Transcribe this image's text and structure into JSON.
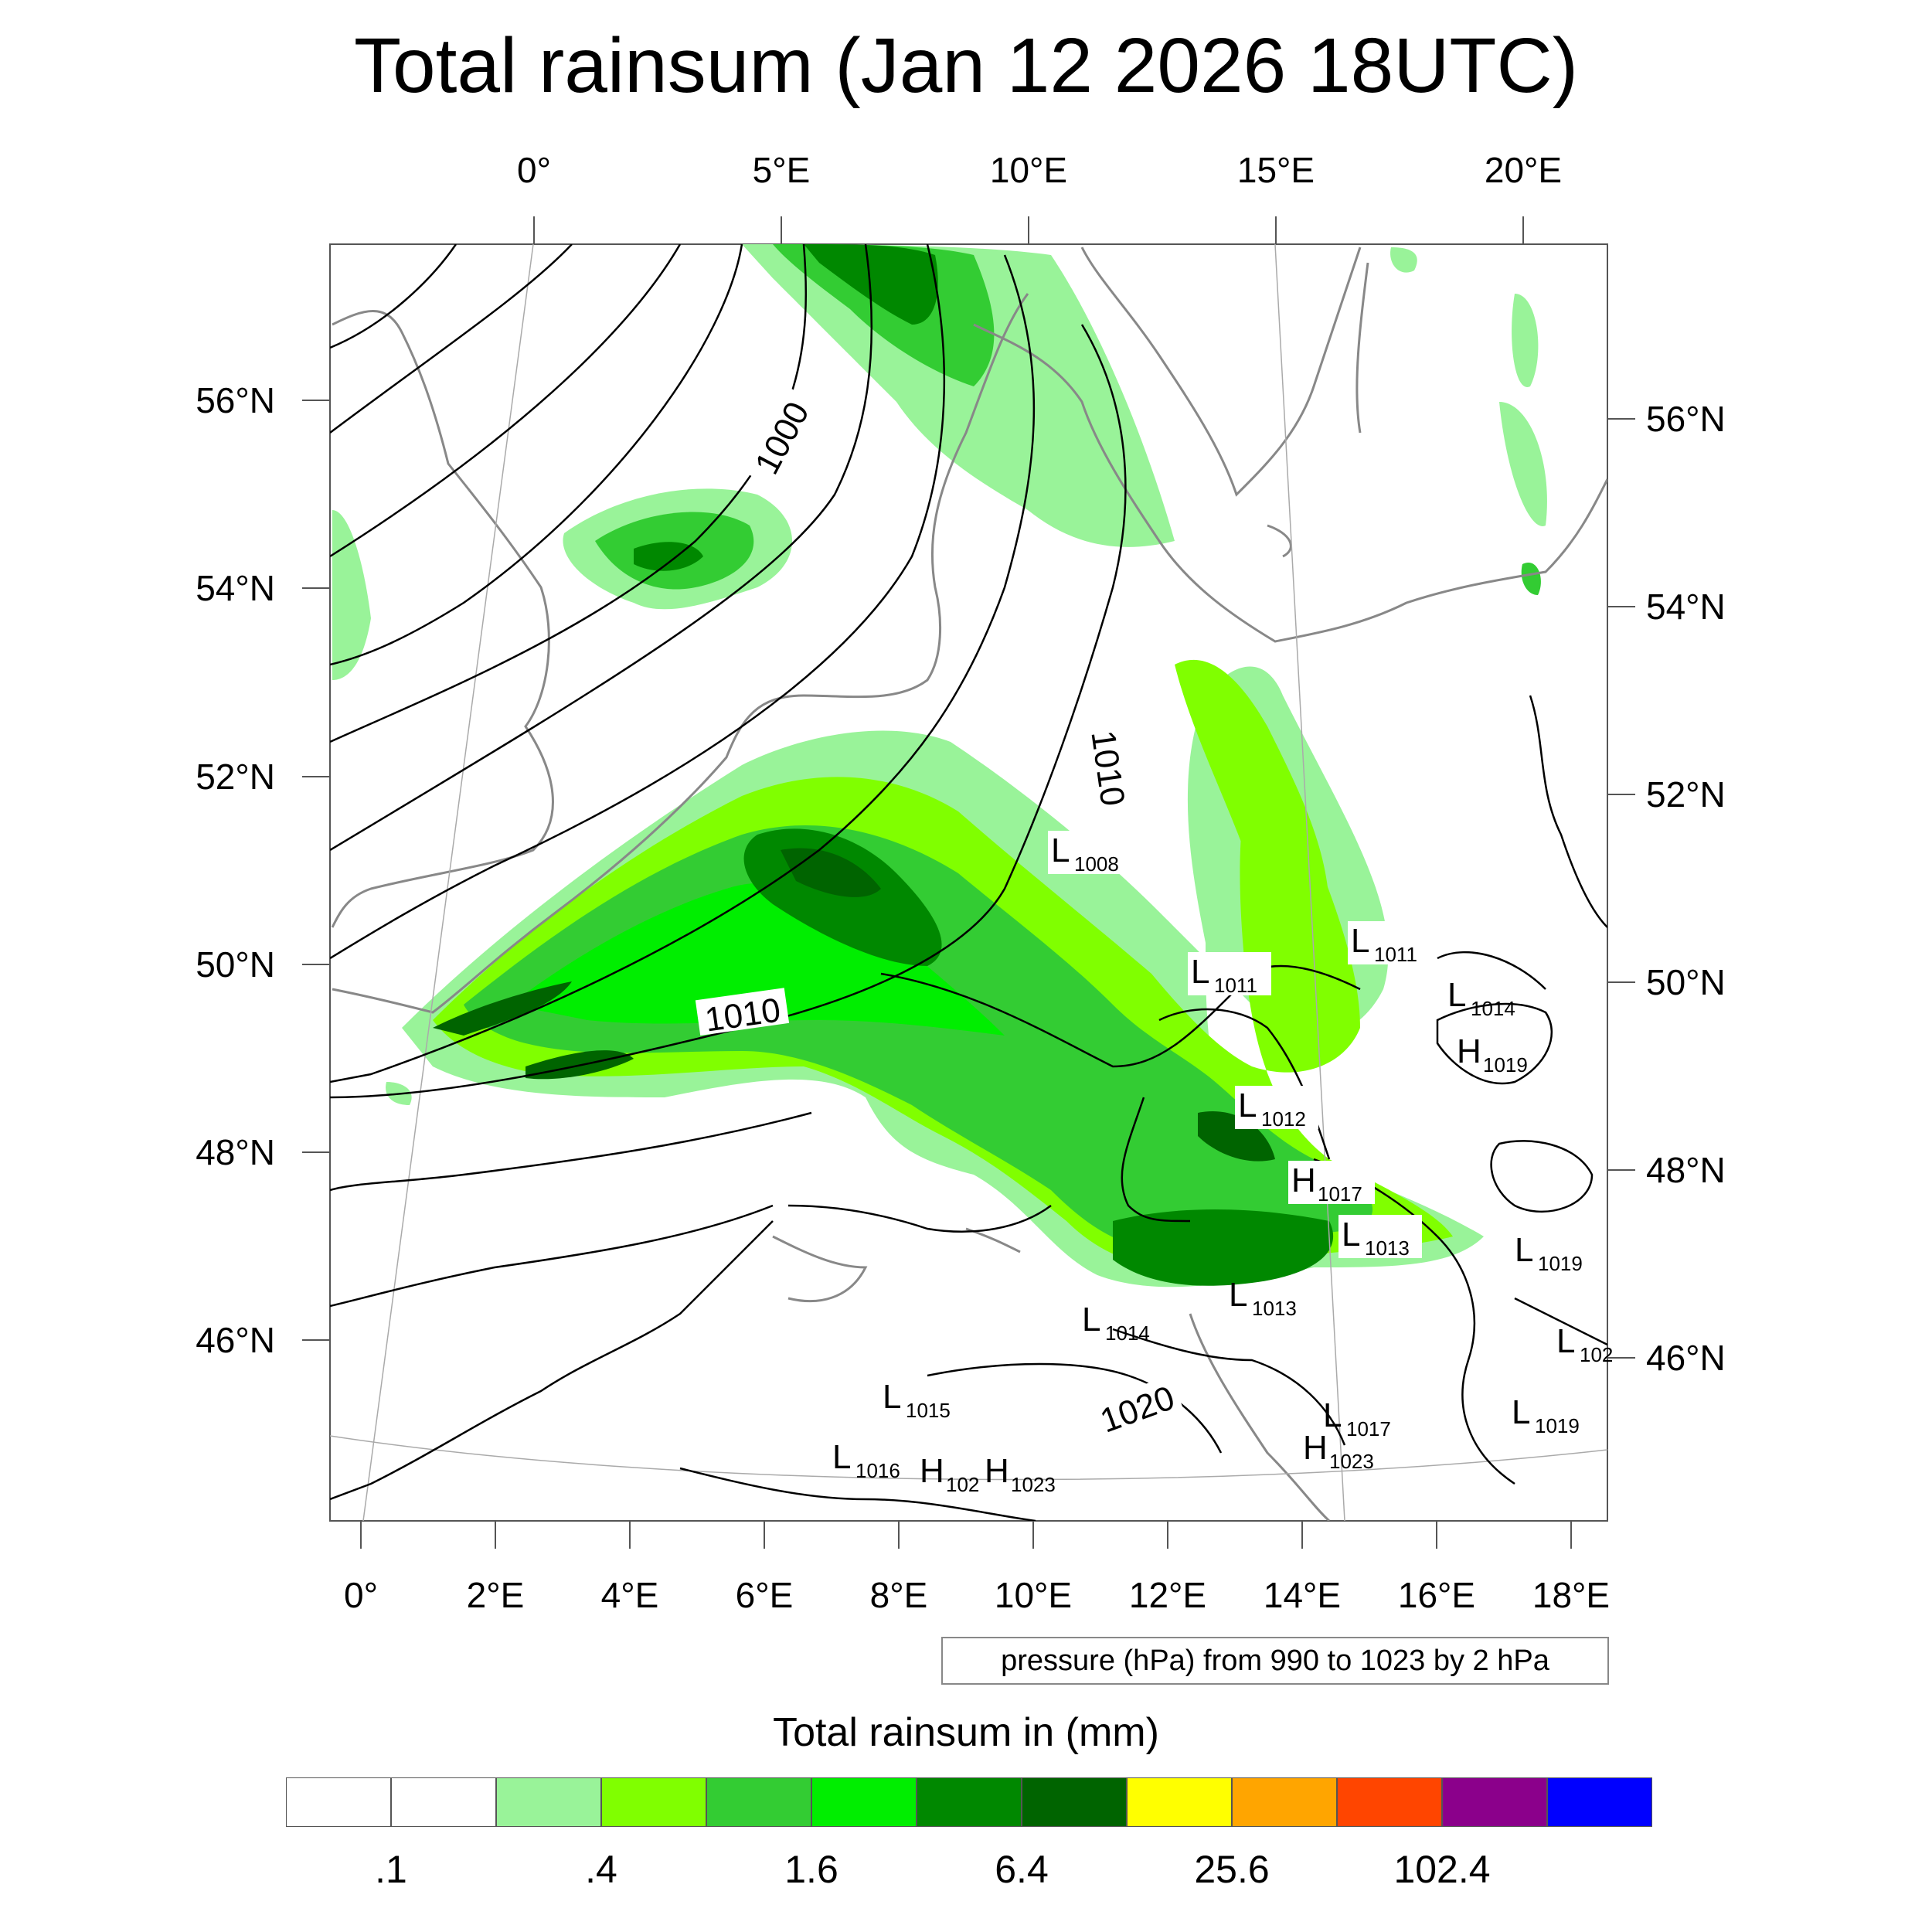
{
  "title": "Total rainsum (Jan 12 2026 18UTC)",
  "top_axis_labels": [
    "0°",
    "5°E",
    "10°E",
    "15°E",
    "20°E"
  ],
  "bottom_axis_labels": [
    "0°",
    "2°E",
    "4°E",
    "6°E",
    "8°E",
    "10°E",
    "12°E",
    "14°E",
    "16°E",
    "18°E"
  ],
  "left_axis_labels": [
    "56°N",
    "54°N",
    "52°N",
    "50°N",
    "48°N",
    "46°N"
  ],
  "right_axis_labels": [
    "56°N",
    "54°N",
    "52°N",
    "50°N",
    "48°N",
    "46°N"
  ],
  "contour_info": "pressure (hPa) from 990 to 1023 by 2 hPa",
  "isobar_labels": [
    "1000",
    "1010",
    "1010",
    "1020"
  ],
  "pressure_centers": [
    {
      "type": "L",
      "value": "1008"
    },
    {
      "type": "L",
      "value": "1011"
    },
    {
      "type": "L",
      "value": "1011"
    },
    {
      "type": "L",
      "value": "1014"
    },
    {
      "type": "H",
      "value": "1019"
    },
    {
      "type": "L",
      "value": "1012"
    },
    {
      "type": "H",
      "value": "1017"
    },
    {
      "type": "L",
      "value": "1013"
    },
    {
      "type": "L",
      "value": "1013"
    },
    {
      "type": "L",
      "value": "1019"
    },
    {
      "type": "L",
      "value": "1014"
    },
    {
      "type": "L",
      "value": "1015"
    },
    {
      "type": "L",
      "value": "1017"
    },
    {
      "type": "L",
      "value": "1019"
    },
    {
      "type": "L",
      "value": "1016"
    },
    {
      "type": "H",
      "value": "102"
    },
    {
      "type": "H",
      "value": "1023"
    },
    {
      "type": "H",
      "value": "1023"
    },
    {
      "type": "L",
      "value": "102"
    }
  ],
  "colorbar": {
    "title": "Total rainsum in (mm)",
    "colors": [
      "#ffffff",
      "#ffffff",
      "#99f399",
      "#80ff00",
      "#33cc33",
      "#00ee00",
      "#008800",
      "#006400",
      "#ffff00",
      "#ffa500",
      "#ff4500",
      "#8b008b",
      "#0000ff"
    ],
    "labels": [
      ".1",
      ".4",
      "1.6",
      "6.4",
      "25.6",
      "102.4"
    ]
  }
}
